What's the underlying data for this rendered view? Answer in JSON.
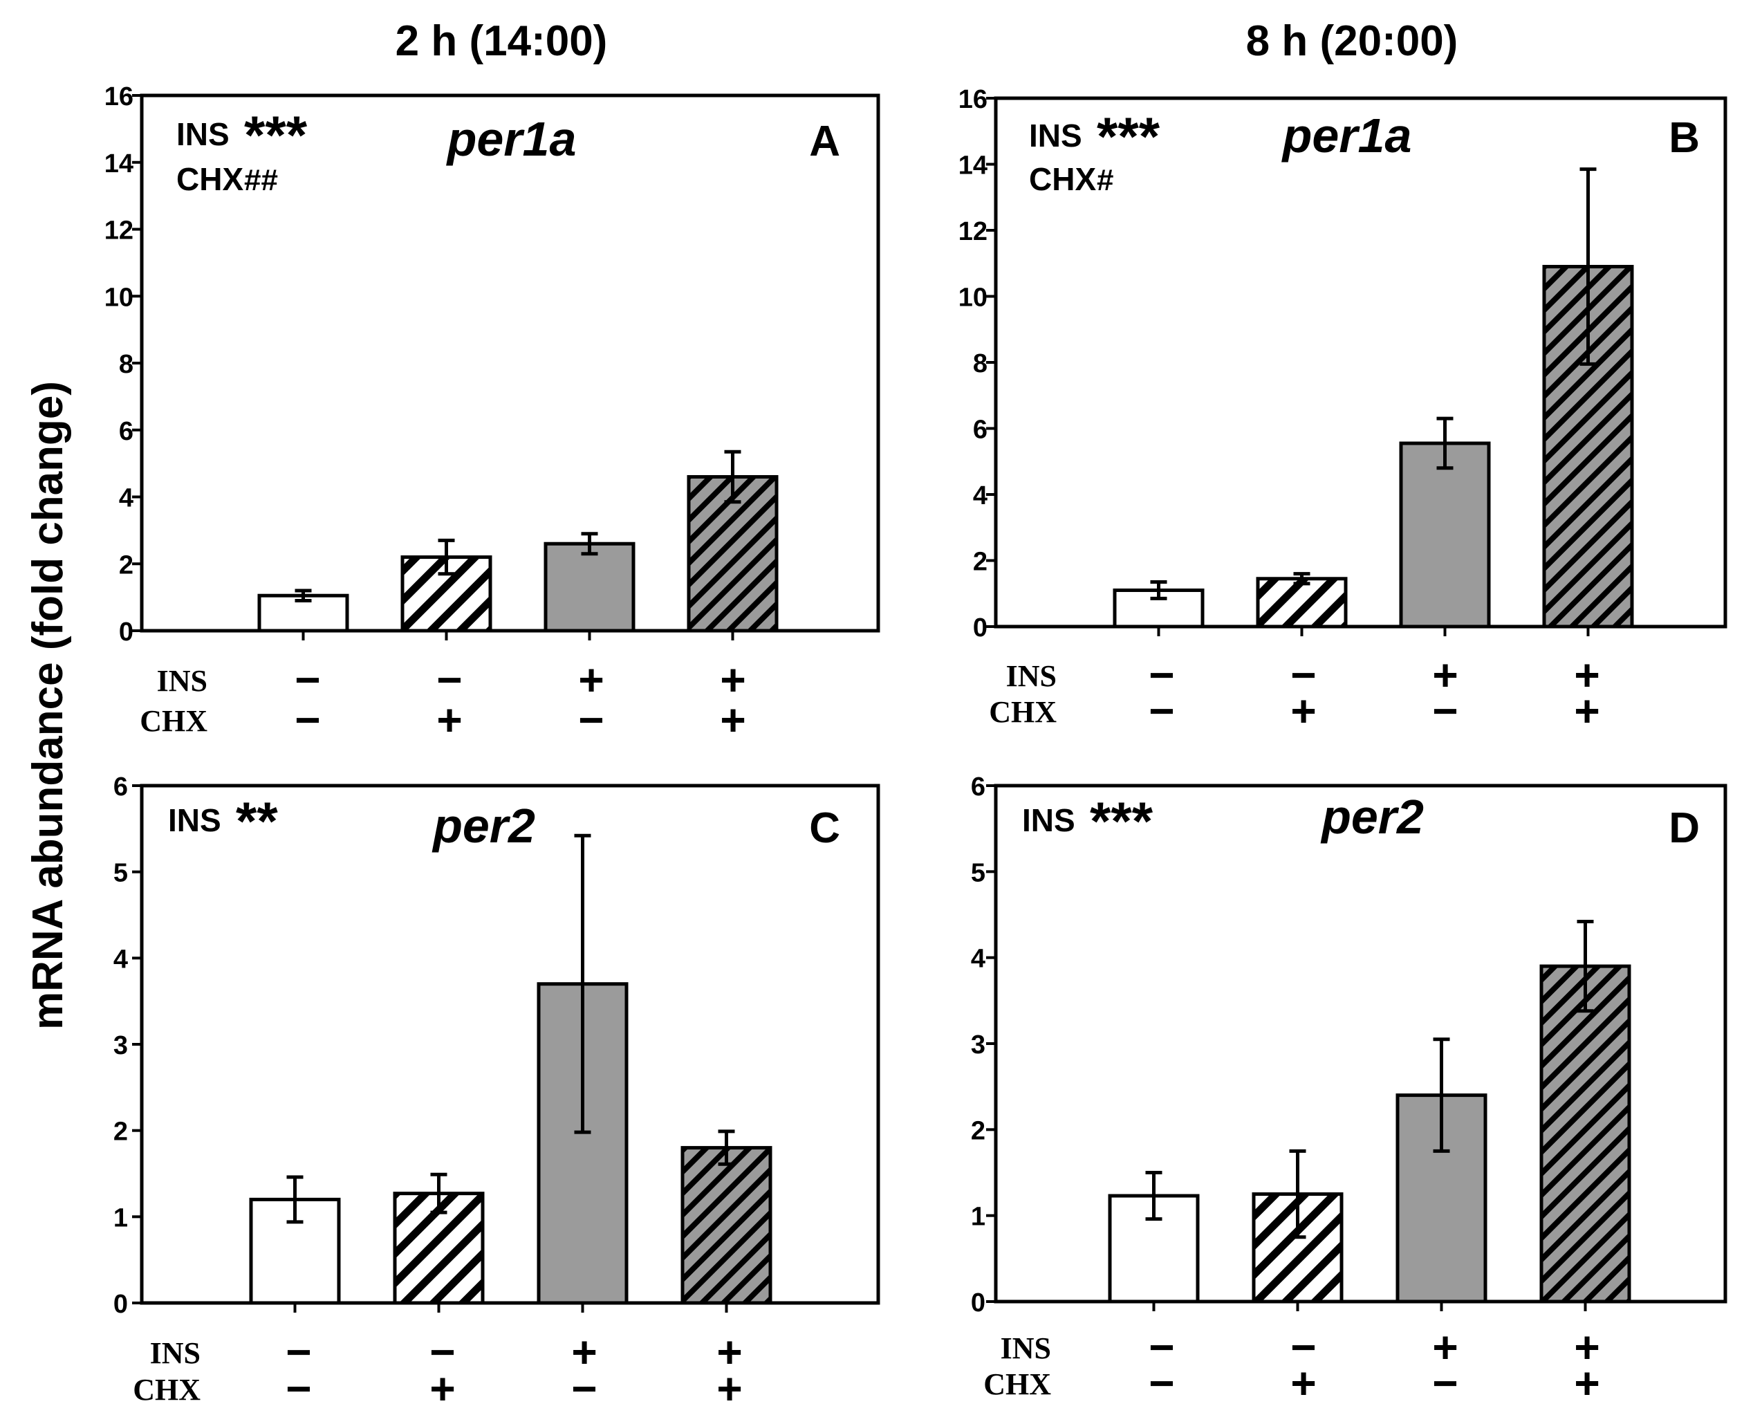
{
  "figure": {
    "column_titles": [
      "2 h (14:00)",
      "8 h (20:00)"
    ],
    "shared_ylabel": "mRNA abundance (fold change)",
    "row_labels": [
      "INS",
      "CHX"
    ]
  },
  "treatments": {
    "INS": [
      "−",
      "−",
      "+",
      "+"
    ],
    "CHX": [
      "−",
      "+",
      "−",
      "+"
    ]
  },
  "colors": {
    "solid_fill": "#9b9b9b",
    "open_fill": "#ffffff",
    "stroke": "#000000"
  },
  "chart_data": [
    {
      "type": "bar",
      "panel": "A",
      "title": "per1a",
      "column": "2 h (14:00)",
      "stats": [
        {
          "factor": "INS",
          "mark": "***"
        },
        {
          "factor": "CHX",
          "mark": "##"
        }
      ],
      "categories": [
        "INS− CHX−",
        "INS− CHX+",
        "INS+ CHX−",
        "INS+ CHX+"
      ],
      "values": [
        1.05,
        2.2,
        2.6,
        4.6
      ],
      "errors": [
        0.15,
        0.5,
        0.3,
        0.75
      ],
      "fills": [
        "white",
        "hatch-white",
        "gray",
        "hatch-gray"
      ],
      "ylim": [
        0,
        16
      ],
      "yticks": [
        0,
        2,
        4,
        6,
        8,
        10,
        12,
        14,
        16
      ]
    },
    {
      "type": "bar",
      "panel": "B",
      "title": "per1a",
      "column": "8 h (20:00)",
      "stats": [
        {
          "factor": "INS",
          "mark": "***"
        },
        {
          "factor": "CHX",
          "mark": "#"
        }
      ],
      "categories": [
        "INS− CHX−",
        "INS− CHX+",
        "INS+ CHX−",
        "INS+ CHX+"
      ],
      "values": [
        1.1,
        1.45,
        5.55,
        10.9
      ],
      "errors": [
        0.25,
        0.15,
        0.75,
        2.95
      ],
      "fills": [
        "white",
        "hatch-white",
        "gray",
        "hatch-gray"
      ],
      "ylim": [
        0,
        16
      ],
      "yticks": [
        0,
        2,
        4,
        6,
        8,
        10,
        12,
        14,
        16
      ]
    },
    {
      "type": "bar",
      "panel": "C",
      "title": "per2",
      "column": "2 h (14:00)",
      "stats": [
        {
          "factor": "INS",
          "mark": "**"
        }
      ],
      "categories": [
        "INS− CHX−",
        "INS− CHX+",
        "INS+ CHX−",
        "INS+ CHX+"
      ],
      "values": [
        1.2,
        1.27,
        3.7,
        1.8
      ],
      "errors": [
        0.26,
        0.22,
        1.72,
        0.19
      ],
      "fills": [
        "white",
        "hatch-white",
        "gray",
        "hatch-gray"
      ],
      "ylim": [
        0,
        6
      ],
      "yticks": [
        0,
        1,
        2,
        3,
        4,
        5,
        6
      ]
    },
    {
      "type": "bar",
      "panel": "D",
      "title": "per2",
      "column": "8 h (20:00)",
      "stats": [
        {
          "factor": "INS",
          "mark": "***"
        }
      ],
      "categories": [
        "INS− CHX−",
        "INS− CHX+",
        "INS+ CHX−",
        "INS+ CHX+"
      ],
      "values": [
        1.23,
        1.25,
        2.4,
        3.9
      ],
      "errors": [
        0.27,
        0.5,
        0.65,
        0.52
      ],
      "fills": [
        "white",
        "hatch-white",
        "gray",
        "hatch-gray"
      ],
      "ylim": [
        0,
        6
      ],
      "yticks": [
        0,
        1,
        2,
        3,
        4,
        5,
        6
      ]
    }
  ]
}
